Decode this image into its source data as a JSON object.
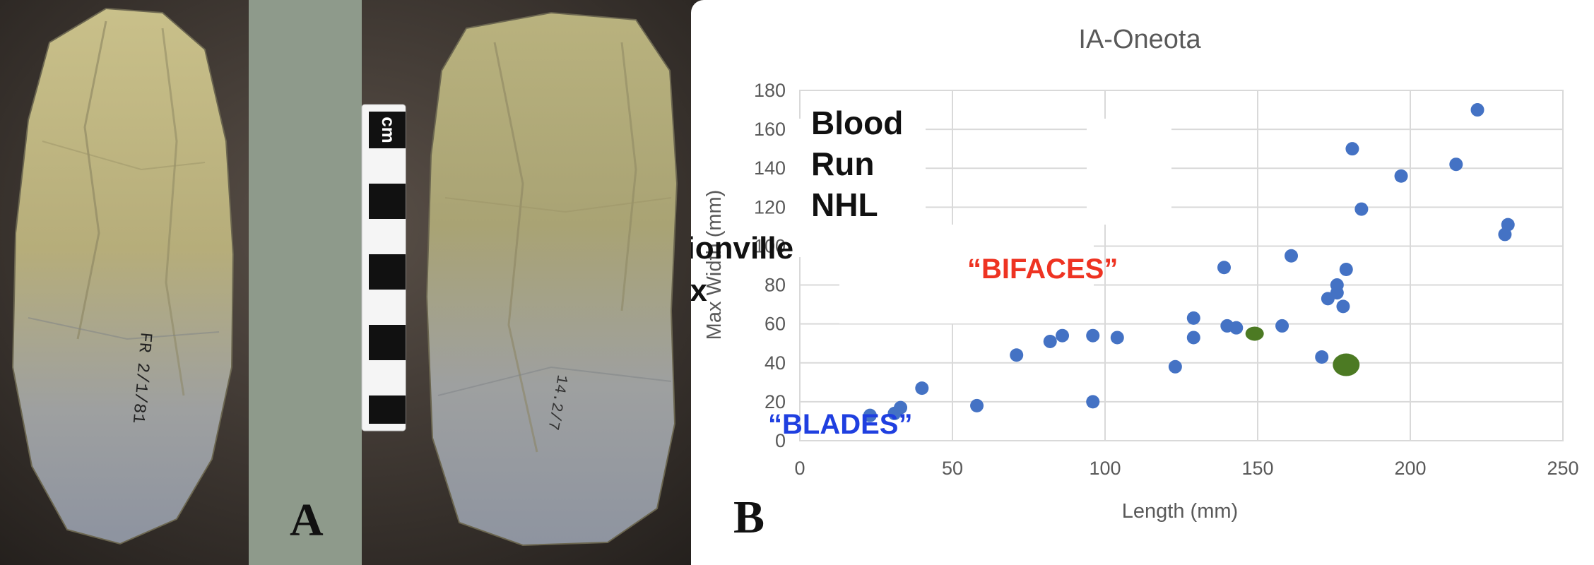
{
  "panel_a": {
    "letter": "A",
    "scale_label": "cm",
    "specimen_1_marking": "FR 2/1/81",
    "specimen_2_marking": "14.2/7"
  },
  "panel_b": {
    "letter": "B"
  },
  "chart_data": {
    "type": "scatter",
    "title": "IA-Oneota",
    "xlabel": "Length (mm)",
    "ylabel": "Max Width (mm)",
    "xlim": [
      0,
      250
    ],
    "ylim": [
      0,
      180
    ],
    "xticks": [
      0,
      50,
      100,
      150,
      200,
      250
    ],
    "yticks": [
      0,
      20,
      40,
      60,
      80,
      100,
      120,
      140,
      160,
      180
    ],
    "grid": true,
    "legend": "none",
    "colors": {
      "points": "#4472c4",
      "highlight": "#4c7a23",
      "blades": "#1f3fe0",
      "bifaces": "#ee3322",
      "text": "#111111"
    },
    "series": [
      {
        "color": "#4472c4",
        "points": [
          [
            23,
            13
          ],
          [
            31,
            14
          ],
          [
            33,
            17
          ],
          [
            40,
            27
          ],
          [
            58,
            18
          ],
          [
            71,
            44
          ],
          [
            82,
            51
          ],
          [
            86,
            54
          ],
          [
            96,
            54
          ],
          [
            96,
            20
          ],
          [
            104,
            53
          ],
          [
            123,
            38
          ],
          [
            129,
            63
          ],
          [
            129,
            53
          ],
          [
            139,
            89
          ],
          [
            140,
            59
          ],
          [
            143,
            58
          ],
          [
            158,
            59
          ],
          [
            161,
            95
          ],
          [
            171,
            43
          ],
          [
            173,
            73
          ],
          [
            176,
            80
          ],
          [
            176,
            76
          ],
          [
            178,
            69
          ],
          [
            179,
            88
          ],
          [
            181,
            150
          ],
          [
            184,
            119
          ],
          [
            197,
            136
          ],
          [
            215,
            142
          ],
          [
            222,
            170
          ],
          [
            231,
            106
          ],
          [
            232,
            111
          ]
        ]
      },
      {
        "color": "#4c7a23",
        "points": [
          [
            149,
            55
          ],
          [
            179,
            39
          ]
        ],
        "sizes": [
          "small",
          "large"
        ]
      }
    ],
    "annotations": [
      {
        "lines": [
          "Blood",
          "Run",
          "NHL"
        ],
        "color": "#111111"
      },
      {
        "lines": [
          "Correctionville",
          "Complex"
        ],
        "color": "#111111"
      },
      {
        "lines": [
          "“BLADES”"
        ],
        "color": "#1f3fe0"
      },
      {
        "lines": [
          "“BIFACES”"
        ],
        "color": "#ee3322"
      }
    ]
  }
}
